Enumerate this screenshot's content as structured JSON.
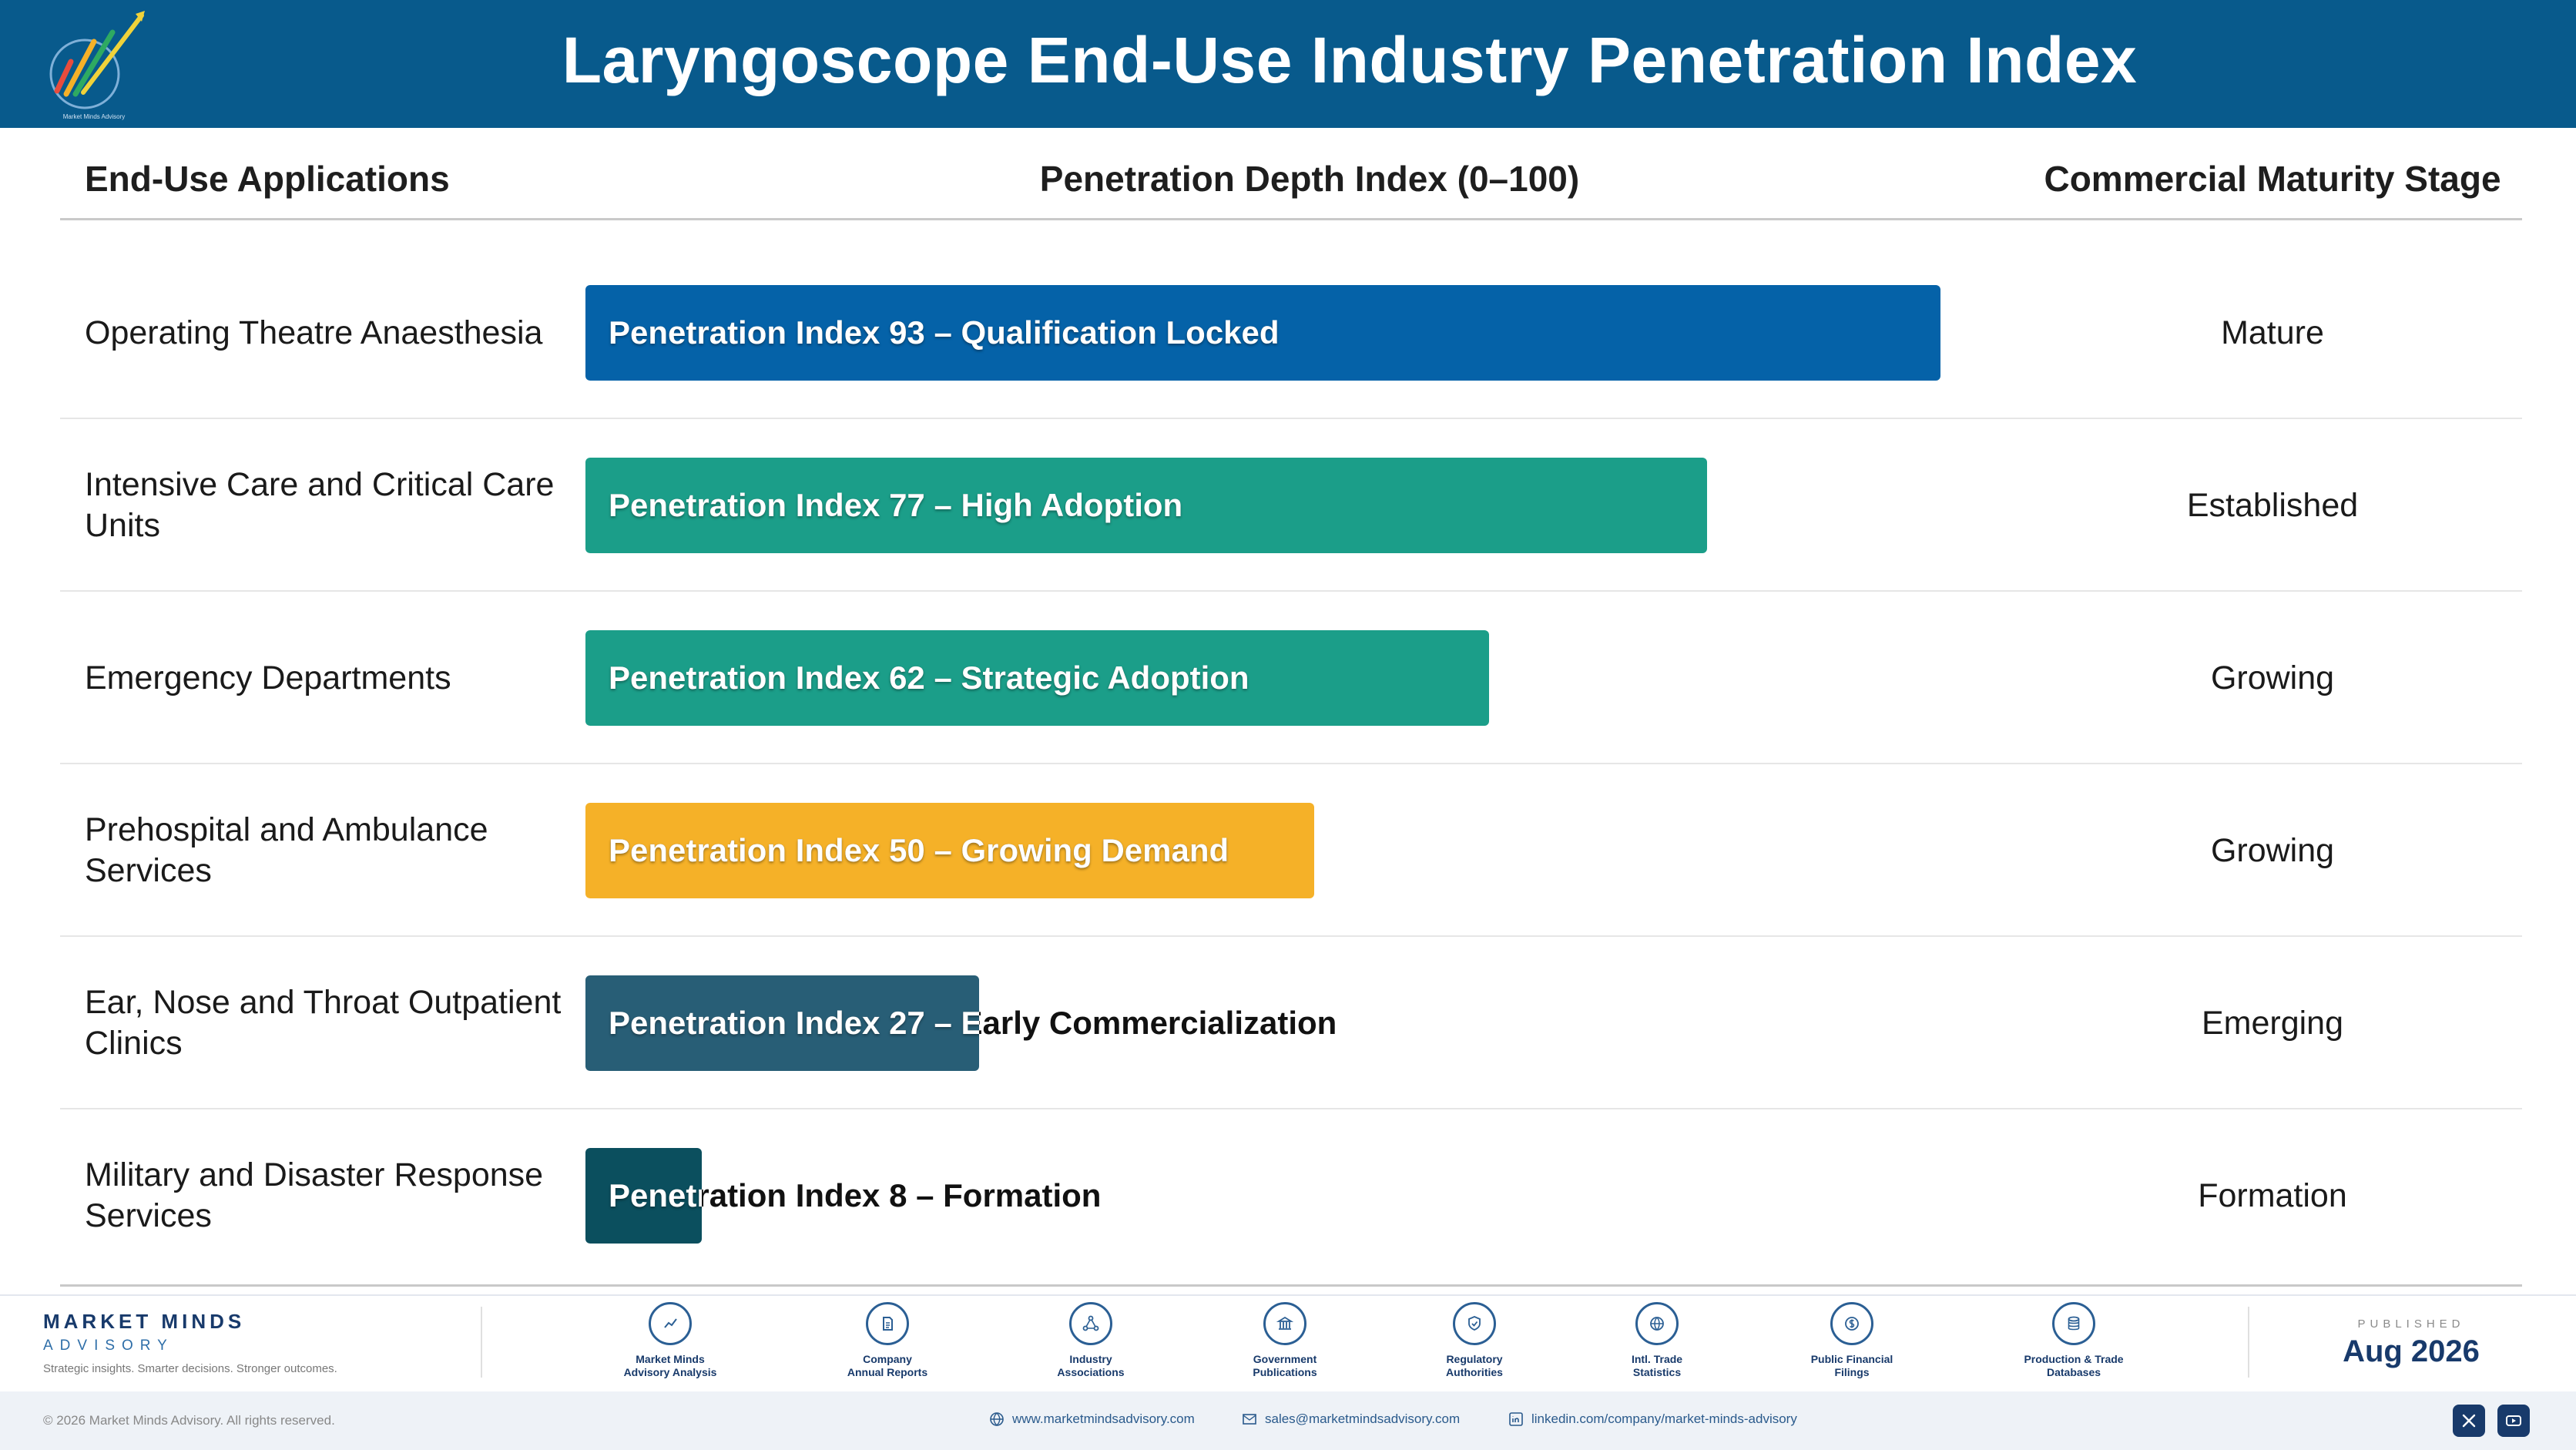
{
  "header": {
    "title": "Laryngoscope End-Use Industry Penetration Index",
    "logo_tiny_text": "Market Minds Advisory"
  },
  "columns": {
    "application": "End-Use Applications",
    "index": "Penetration Depth Index (0–100)",
    "stage": "Commercial Maturity Stage"
  },
  "chart_data": {
    "type": "bar",
    "orientation": "horizontal",
    "title": "Laryngoscope End-Use Industry Penetration Index",
    "xlabel": "Penetration Depth Index (0–100)",
    "xlim": [
      0,
      100
    ],
    "grid": false,
    "categories": [
      "Operating Theatre Anaesthesia",
      "Intensive Care and Critical Care Units",
      "Emergency Departments",
      "Prehospital and Ambulance Services",
      "Ear, Nose and Throat Outpatient Clinics",
      "Military and Disaster Response Services"
    ],
    "values": [
      93,
      77,
      62,
      50,
      27,
      8
    ],
    "bar_labels": [
      "Penetration Index 93 – Qualification Locked",
      "Penetration Index 77 – High Adoption",
      "Penetration Index 62 – Strategic Adoption",
      "Penetration Index 50 – Growing Demand",
      "Penetration Index 27 – Early Commercialization",
      "Penetration Index 8 – Formation"
    ],
    "stages": [
      "Mature",
      "Established",
      "Growing",
      "Growing",
      "Emerging",
      "Formation"
    ],
    "colors": [
      "#0562a8",
      "#1b9e89",
      "#1b9e89",
      "#f5b128",
      "#285e76",
      "#0b4f5e"
    ]
  },
  "rows": [
    {
      "app": "Operating Theatre Anaesthesia"
    },
    {
      "app": "Intensive Care and Critical Care Units"
    },
    {
      "app": "Emergency Departments"
    },
    {
      "app": "Prehospital and Ambulance Services"
    },
    {
      "app": "Ear, Nose and Throat Outpatient Clinics"
    },
    {
      "app": "Military and Disaster Response Services"
    }
  ],
  "footer": {
    "brand_name": "MARKET MINDS",
    "brand_sub": "ADVISORY",
    "brand_tagline": "Strategic insights. Smarter decisions. Stronger outcomes.",
    "sources": [
      {
        "line1": "Market Minds",
        "line2": "Advisory Analysis",
        "icon": "trend-chart-icon"
      },
      {
        "line1": "Company",
        "line2": "Annual Reports",
        "icon": "document-icon"
      },
      {
        "line1": "Industry",
        "line2": "Associations",
        "icon": "network-icon"
      },
      {
        "line1": "Government",
        "line2": "Publications",
        "icon": "government-building-icon"
      },
      {
        "line1": "Regulatory",
        "line2": "Authorities",
        "icon": "shield-icon"
      },
      {
        "line1": "Intl. Trade",
        "line2": "Statistics",
        "icon": "globe-icon"
      },
      {
        "line1": "Public Financial",
        "line2": "Filings",
        "icon": "coin-icon"
      },
      {
        "line1": "Production & Trade",
        "line2": "Databases",
        "icon": "database-icon"
      }
    ],
    "published_label": "PUBLISHED",
    "published_date": "Aug 2026",
    "copyright": "© 2026 Market Minds Advisory. All rights reserved.",
    "website": "www.marketmindsadvisory.com",
    "email": "sales@marketmindsadvisory.com",
    "linkedin": "linkedin.com/company/market-minds-advisory"
  }
}
